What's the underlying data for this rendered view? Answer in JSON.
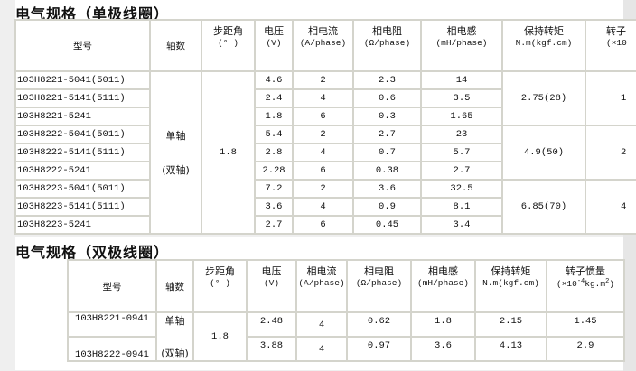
{
  "single": {
    "title": "电气规格（单极线圈）",
    "headers": [
      {
        "name": "型号",
        "unit": ""
      },
      {
        "name": "轴数",
        "unit": ""
      },
      {
        "name": "步距角",
        "unit": "(° )"
      },
      {
        "name": "电压",
        "unit": "(V)"
      },
      {
        "name": "相电流",
        "unit": "(A/phase)"
      },
      {
        "name": "相电阻",
        "unit": "(Ω/phase)"
      },
      {
        "name": "相电感",
        "unit": "(mH/phase)"
      },
      {
        "name": "保持转矩",
        "unit": "N.m(kgf.cm)"
      },
      {
        "name": "转子",
        "unit": "(×10"
      }
    ],
    "shaft_line1": "单轴",
    "shaft_line2": "(双轴)",
    "step_angle": "1.8",
    "rows": [
      {
        "model": "103H8221-5041(5011)",
        "voltage": "4.6",
        "current": "2",
        "resistance": "2.3",
        "inductance": "14"
      },
      {
        "model": "103H8221-5141(5111)",
        "voltage": "2.4",
        "current": "4",
        "resistance": "0.6",
        "inductance": "3.5"
      },
      {
        "model": "103H8221-5241",
        "voltage": "1.8",
        "current": "6",
        "resistance": "0.3",
        "inductance": "1.65"
      },
      {
        "model": "103H8222-5041(5011)",
        "voltage": "5.4",
        "current": "2",
        "resistance": "2.7",
        "inductance": "23"
      },
      {
        "model": "103H8222-5141(5111)",
        "voltage": "2.8",
        "current": "4",
        "resistance": "0.7",
        "inductance": "5.7"
      },
      {
        "model": "103H8222-5241",
        "voltage": "2.28",
        "current": "6",
        "resistance": "0.38",
        "inductance": "2.7"
      },
      {
        "model": "103H8223-5041(5011)",
        "voltage": "7.2",
        "current": "2",
        "resistance": "3.6",
        "inductance": "32.5"
      },
      {
        "model": "103H8223-5141(5111)",
        "voltage": "3.6",
        "current": "4",
        "resistance": "0.9",
        "inductance": "8.1"
      },
      {
        "model": "103H8223-5241",
        "voltage": "2.7",
        "current": "6",
        "resistance": "0.45",
        "inductance": "3.4"
      }
    ],
    "groups": [
      {
        "torque": "2.75(28)",
        "inertia": "1"
      },
      {
        "torque": "4.9(50)",
        "inertia": "2"
      },
      {
        "torque": "6.85(70)",
        "inertia": "4"
      }
    ]
  },
  "bipolar": {
    "title": "电气规格（双极线圈）",
    "headers": [
      {
        "name": "型号",
        "unit": ""
      },
      {
        "name": "轴数",
        "unit": ""
      },
      {
        "name": "步距角",
        "unit": "(° )"
      },
      {
        "name": "电压",
        "unit": "(V)"
      },
      {
        "name": "相电流",
        "unit": "(A/phase)"
      },
      {
        "name": "相电阻",
        "unit": "(Ω/phase)"
      },
      {
        "name": "相电感",
        "unit": "(mH/phase)"
      },
      {
        "name": "保持转矩",
        "unit": "N.m(kgf.cm)"
      },
      {
        "name": "转子惯量",
        "unit_pre": "(×10",
        "unit_exp": "-4",
        "unit_post": "kg.m",
        "unit_exp2": "2",
        "unit_close": ")"
      }
    ],
    "step_angle": "1.8",
    "rows": [
      {
        "model": "103H8221-0941",
        "shaft": "单轴",
        "voltage": "2.48",
        "current": "4",
        "resistance": "0.62",
        "inductance": "1.8",
        "torque": "2.15",
        "inertia": "1.45"
      },
      {
        "model": "103H8222-0941",
        "shaft": "(双轴)",
        "voltage": "3.88",
        "current": "4",
        "resistance": "0.97",
        "inductance": "3.6",
        "torque": "4.13",
        "inertia": "2.9"
      }
    ]
  }
}
